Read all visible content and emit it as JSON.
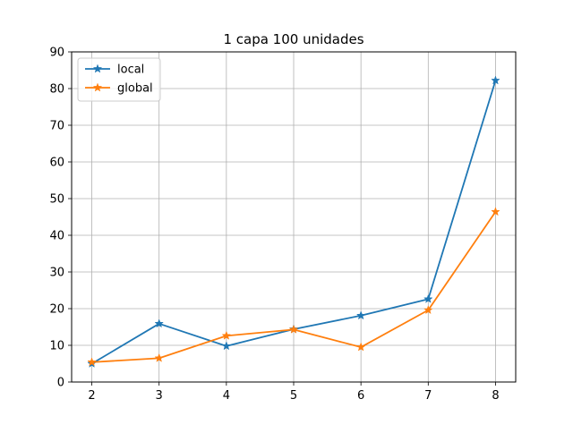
{
  "chart_data": {
    "type": "line",
    "title": "1 capa 100 unidades",
    "xlabel": "",
    "ylabel": "",
    "x": [
      2,
      3,
      4,
      5,
      6,
      7,
      8
    ],
    "xlim": [
      1.7,
      8.3
    ],
    "ylim": [
      0,
      90
    ],
    "xticks": [
      2,
      3,
      4,
      5,
      6,
      7,
      8
    ],
    "yticks": [
      0,
      10,
      20,
      30,
      40,
      50,
      60,
      70,
      80,
      90
    ],
    "grid": true,
    "legend_position": "upper-left",
    "marker": "star",
    "series": [
      {
        "name": "local",
        "color": "#1f77b4",
        "values": [
          5.0,
          15.9,
          9.8,
          14.4,
          18.1,
          22.6,
          82.2
        ]
      },
      {
        "name": "global",
        "color": "#ff7f0e",
        "values": [
          5.4,
          6.5,
          12.6,
          14.3,
          9.5,
          19.6,
          46.4
        ]
      }
    ]
  }
}
